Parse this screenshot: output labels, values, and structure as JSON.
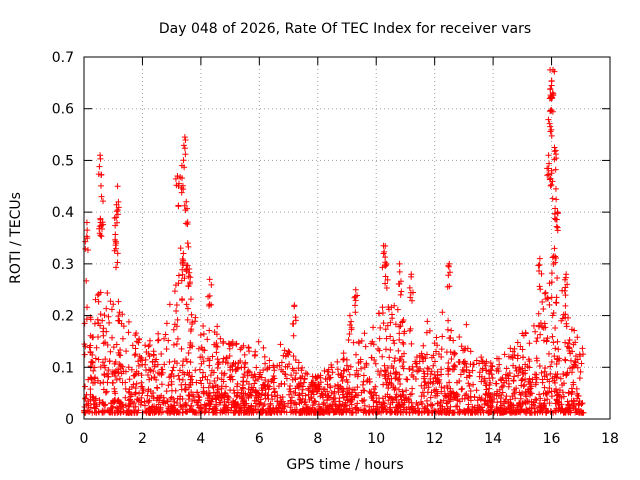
{
  "chart_data": {
    "type": "scatter",
    "title": "Day 048 of 2026, Rate Of TEC Index for receiver vars",
    "xlabel": "GPS time / hours",
    "ylabel": "ROTI / TECUs",
    "xlim": [
      0,
      18
    ],
    "ylim": [
      0,
      0.7
    ],
    "x_ticks": [
      "0",
      "2",
      "4",
      "6",
      "8",
      "10",
      "12",
      "14",
      "16",
      "18"
    ],
    "y_ticks": [
      "0",
      "0.1",
      "0.2",
      "0.3",
      "0.4",
      "0.5",
      "0.6",
      "0.7"
    ],
    "grid": true,
    "marker": "+",
    "color": "#ff0000",
    "series": [
      {
        "name": "ROTI",
        "x_range": [
          0,
          17.1
        ],
        "profile": {
          "x": [
            0.0,
            0.3,
            0.6,
            1.0,
            1.2,
            1.6,
            2.0,
            2.5,
            3.0,
            3.3,
            3.5,
            3.8,
            4.2,
            4.6,
            5.0,
            5.5,
            6.0,
            6.5,
            7.0,
            7.5,
            8.0,
            8.5,
            9.0,
            9.5,
            10.0,
            10.3,
            10.8,
            11.5,
            12.0,
            12.5,
            13.0,
            13.5,
            14.0,
            14.5,
            15.0,
            15.5,
            16.0,
            16.3,
            16.6,
            17.1
          ],
          "typical_max": [
            0.27,
            0.22,
            0.3,
            0.24,
            0.22,
            0.17,
            0.14,
            0.14,
            0.2,
            0.32,
            0.3,
            0.2,
            0.17,
            0.15,
            0.14,
            0.13,
            0.12,
            0.1,
            0.12,
            0.09,
            0.07,
            0.1,
            0.12,
            0.15,
            0.19,
            0.22,
            0.2,
            0.15,
            0.17,
            0.19,
            0.13,
            0.11,
            0.1,
            0.12,
            0.16,
            0.2,
            0.28,
            0.25,
            0.2,
            0.12
          ]
        },
        "peaks": [
          {
            "x": 0.55,
            "y": 0.51
          },
          {
            "x": 0.6,
            "y": 0.43
          },
          {
            "x": 0.57,
            "y": 0.38
          },
          {
            "x": 0.1,
            "y": 0.38
          },
          {
            "x": 1.15,
            "y": 0.45
          },
          {
            "x": 1.1,
            "y": 0.39
          },
          {
            "x": 1.1,
            "y": 0.34
          },
          {
            "x": 3.2,
            "y": 0.47
          },
          {
            "x": 3.35,
            "y": 0.49
          },
          {
            "x": 3.45,
            "y": 0.545
          },
          {
            "x": 3.5,
            "y": 0.42
          },
          {
            "x": 3.55,
            "y": 0.34
          },
          {
            "x": 3.4,
            "y": 0.32
          },
          {
            "x": 3.6,
            "y": 0.29
          },
          {
            "x": 4.3,
            "y": 0.27
          },
          {
            "x": 10.25,
            "y": 0.335
          },
          {
            "x": 10.35,
            "y": 0.3
          },
          {
            "x": 10.8,
            "y": 0.3
          },
          {
            "x": 11.2,
            "y": 0.28
          },
          {
            "x": 12.5,
            "y": 0.3
          },
          {
            "x": 15.6,
            "y": 0.31
          },
          {
            "x": 15.95,
            "y": 0.675
          },
          {
            "x": 16.05,
            "y": 0.675
          },
          {
            "x": 16.0,
            "y": 0.645
          },
          {
            "x": 15.95,
            "y": 0.595
          },
          {
            "x": 16.1,
            "y": 0.525
          },
          {
            "x": 15.9,
            "y": 0.51
          },
          {
            "x": 16.0,
            "y": 0.48
          },
          {
            "x": 16.15,
            "y": 0.445
          },
          {
            "x": 16.2,
            "y": 0.4
          },
          {
            "x": 16.1,
            "y": 0.33
          },
          {
            "x": 16.5,
            "y": 0.28
          },
          {
            "x": 7.2,
            "y": 0.22
          },
          {
            "x": 9.3,
            "y": 0.25
          },
          {
            "x": 9.1,
            "y": 0.2
          }
        ]
      }
    ]
  }
}
